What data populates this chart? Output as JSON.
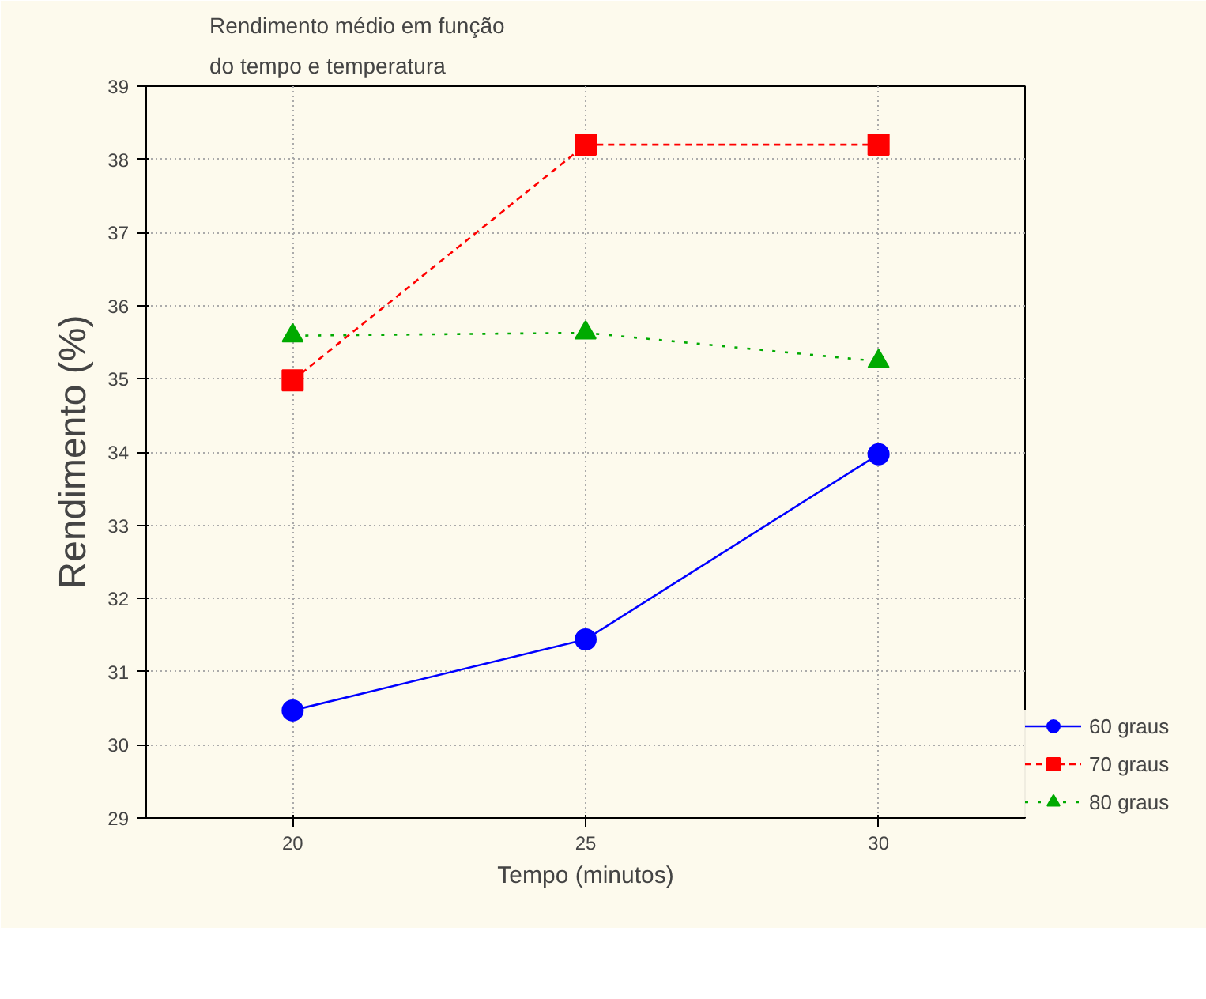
{
  "chart_data": {
    "type": "line",
    "title": "Rendimento médio em função do tempo e temperatura",
    "xlabel": "Tempo (minutos)",
    "ylabel": "Rendimento (%)",
    "x": [
      20,
      25,
      30
    ],
    "xlim": [
      17.5,
      32.5
    ],
    "xticks": [
      20,
      25,
      30
    ],
    "ylim": [
      29,
      39
    ],
    "yticks": [
      29,
      30,
      31,
      32,
      33,
      34,
      35,
      36,
      37,
      38,
      39
    ],
    "grid": true,
    "legend": "bottom right",
    "series": [
      {
        "name": "60 graus",
        "color": "#0000ff",
        "values": [
          30.47,
          31.44,
          33.97
        ],
        "marker": "circle",
        "line_style": "solid"
      },
      {
        "name": "70 graus",
        "color": "#ff0000",
        "values": [
          34.98,
          38.2,
          38.2
        ],
        "marker": "square",
        "line_style": "dashed"
      },
      {
        "name": "80 graus",
        "color": "#00aa00",
        "values": [
          35.59,
          35.63,
          35.24
        ],
        "marker": "triangle",
        "line_style": "dotted"
      }
    ]
  }
}
